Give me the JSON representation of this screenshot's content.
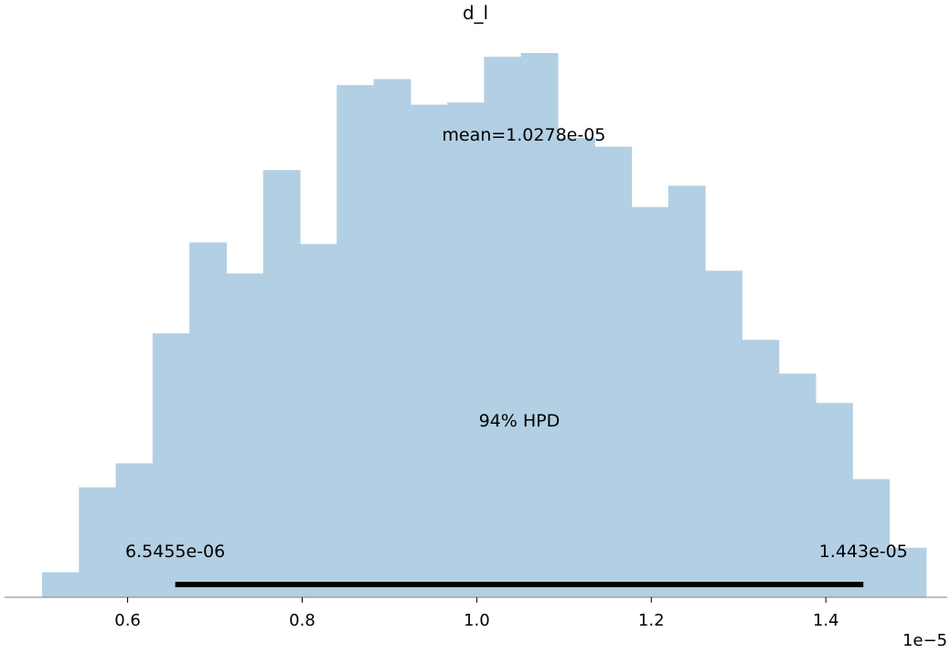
{
  "chart_data": {
    "type": "bar",
    "title": "d_l",
    "xlabel": "",
    "ylabel": "",
    "grid": false,
    "x_offset_label": "1e−5",
    "xlim": [
      0.459,
      1.5392
    ],
    "ylim": [
      0,
      1
    ],
    "x_ticks": [
      0.6,
      0.8,
      1.0,
      1.2,
      1.4
    ],
    "x_tick_labels": [
      "0.6",
      "0.8",
      "1.0",
      "1.2",
      "1.4"
    ],
    "bin_edges": [
      0.502,
      0.5442,
      0.5864,
      0.6286,
      0.6708,
      0.713,
      0.7552,
      0.7974,
      0.8396,
      0.8818,
      0.924,
      0.9662,
      1.0084,
      1.0506,
      1.0928,
      1.135,
      1.1772,
      1.2194,
      1.2616,
      1.3038,
      1.346,
      1.3882,
      1.4304,
      1.4726,
      1.5148
    ],
    "values": [
      0.046,
      0.202,
      0.246,
      0.485,
      0.652,
      0.595,
      0.785,
      0.649,
      0.941,
      0.952,
      0.905,
      0.909,
      0.993,
      1.0,
      0.844,
      0.828,
      0.717,
      0.756,
      0.6,
      0.473,
      0.411,
      0.357,
      0.217,
      0.091
    ],
    "bar_color": "#b3cfe4",
    "mean_label": "mean=1.0278e-05",
    "mean_label_x": 1.0278,
    "hpd_label": "94% HPD",
    "hpd_low": 0.65455,
    "hpd_high": 1.443,
    "hpd_low_label": "6.5455e-06",
    "hpd_high_label": "1.443e-05"
  }
}
